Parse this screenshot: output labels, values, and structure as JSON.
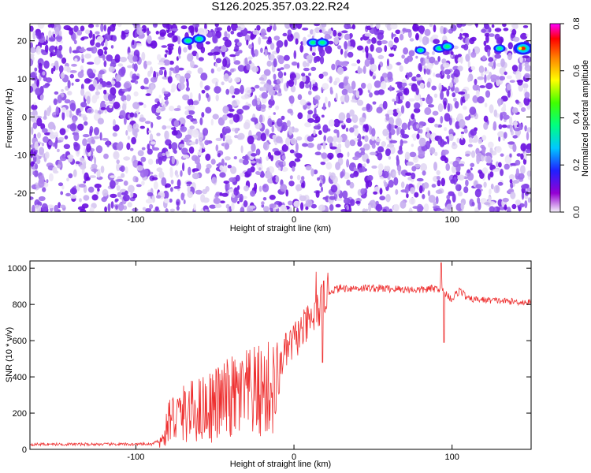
{
  "title": "S126.2025.357.03.22.R24",
  "chart_data": [
    {
      "type": "heatmap",
      "title": "S126.2025.357.03.22.R24",
      "xlabel": "Height of straight line (km)",
      "ylabel": "Frequency (Hz)",
      "xlim": [
        -167,
        150
      ],
      "ylim": [
        -25,
        24.5
      ],
      "xticks": [
        -100,
        0,
        100
      ],
      "yticks": [
        -20,
        -10,
        0,
        10,
        20
      ],
      "colorbar": {
        "label": "Normalized spectral amplitude",
        "range": [
          0,
          0.8
        ],
        "ticks": [
          "0.0",
          "0.2",
          "0.4",
          "0.6",
          "0.8"
        ],
        "colors": [
          "#f4f0fa",
          "#9400d3",
          "#2020ff",
          "#00c8ff",
          "#00ff80",
          "#40ff00",
          "#ffff00",
          "#ff8000",
          "#ff0000",
          "#ff00ff"
        ]
      },
      "hotspots": [
        {
          "x": -67,
          "y": 20,
          "value": 0.3
        },
        {
          "x": -60,
          "y": 20.5,
          "value": 0.35
        },
        {
          "x": 12,
          "y": 19.5,
          "value": 0.3
        },
        {
          "x": 18,
          "y": 19.5,
          "value": 0.35
        },
        {
          "x": 80,
          "y": 17.5,
          "value": 0.2
        },
        {
          "x": 92,
          "y": 18,
          "value": 0.3
        },
        {
          "x": 97,
          "y": 18.5,
          "value": 0.35
        },
        {
          "x": 130,
          "y": 18,
          "value": 0.25
        },
        {
          "x": 145,
          "y": 18,
          "value": 0.75
        }
      ]
    },
    {
      "type": "line",
      "title": "",
      "xlabel": "Height of straight line (km)",
      "ylabel": "SNR (10 * v/v)",
      "xlim": [
        -167,
        150
      ],
      "ylim": [
        0,
        1040
      ],
      "xticks": [
        -100,
        0,
        100
      ],
      "yticks": [
        0,
        200,
        400,
        600,
        800,
        1000
      ],
      "series": [
        {
          "name": "SNR",
          "color": "#ee3030",
          "profile_x": [
            -167,
            -90,
            -82,
            -79,
            -60,
            -40,
            -20,
            -10,
            -8,
            0,
            10,
            15,
            20,
            25,
            30,
            50,
            80,
            92,
            96,
            100,
            105,
            110,
            150
          ],
          "profile_y": [
            28,
            28,
            60,
            170,
            220,
            280,
            320,
            340,
            500,
            600,
            700,
            760,
            860,
            880,
            890,
            890,
            880,
            890,
            860,
            830,
            880,
            830,
            810
          ],
          "spikes": [
            {
              "x": 14,
              "y": 980
            },
            {
              "x": 18,
              "y": 480
            },
            {
              "x": 93,
              "y": 1030
            },
            {
              "x": 95,
              "y": 590
            }
          ]
        }
      ]
    }
  ]
}
